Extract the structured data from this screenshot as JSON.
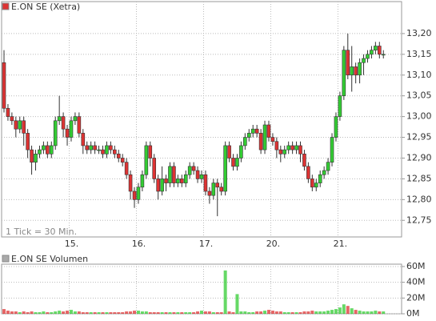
{
  "chart_data": [
    {
      "type": "candlestick",
      "title": "E.ON SE (Xetra)",
      "note": "1 Tick = 30 Min.",
      "grid": true,
      "up_color": "#33cc33",
      "down_color": "#dd3333",
      "open": [
        13.13,
        13.02,
        13.0,
        12.99,
        12.97,
        12.99,
        12.96,
        12.92,
        12.89,
        12.91,
        12.92,
        12.93,
        12.91,
        12.93,
        12.99,
        13.0,
        12.97,
        12.95,
        12.99,
        13.0,
        12.96,
        12.93,
        12.92,
        12.93,
        12.92,
        12.92,
        12.91,
        12.93,
        12.92,
        12.91,
        12.9,
        12.89,
        12.86,
        12.82,
        12.8,
        12.83,
        12.86,
        12.93,
        12.9,
        12.85,
        12.82,
        12.85,
        12.84,
        12.88,
        12.84,
        12.85,
        12.84,
        12.86,
        12.88,
        12.87,
        12.85,
        12.86,
        12.82,
        12.81,
        12.84,
        12.83,
        12.82,
        12.93,
        12.9,
        12.88,
        12.9,
        12.93,
        12.95,
        12.96,
        12.97,
        12.96,
        12.92,
        12.98,
        12.95,
        12.94,
        12.92,
        12.91,
        12.92,
        12.93,
        12.92,
        12.93,
        12.91,
        12.88,
        12.85,
        12.83,
        12.84,
        12.86,
        12.87,
        12.89,
        12.95,
        13.0,
        13.05,
        13.16,
        13.1,
        13.12,
        13.1,
        13.13,
        13.14,
        13.15,
        13.16,
        13.17,
        13.15
      ],
      "high": [
        13.16,
        13.03,
        13.01,
        13.0,
        13.0,
        13.0,
        12.97,
        12.93,
        12.92,
        12.93,
        12.94,
        12.94,
        12.94,
        13.0,
        13.05,
        13.01,
        12.98,
        13.0,
        13.01,
        13.01,
        12.97,
        12.94,
        12.94,
        12.94,
        12.93,
        12.93,
        12.94,
        12.94,
        12.93,
        12.92,
        12.91,
        12.9,
        12.87,
        12.83,
        12.84,
        12.87,
        12.94,
        12.94,
        12.91,
        12.86,
        12.88,
        12.86,
        12.89,
        12.89,
        12.86,
        12.86,
        12.87,
        12.89,
        12.89,
        12.88,
        12.87,
        12.87,
        12.83,
        12.85,
        12.85,
        12.84,
        12.94,
        12.94,
        12.91,
        12.91,
        12.94,
        12.96,
        12.97,
        12.98,
        12.98,
        12.97,
        12.99,
        12.99,
        12.96,
        12.95,
        12.93,
        12.93,
        12.94,
        12.94,
        12.94,
        12.94,
        12.92,
        12.89,
        12.86,
        12.85,
        12.87,
        12.88,
        12.9,
        12.96,
        13.01,
        13.06,
        13.17,
        13.2,
        13.17,
        13.13,
        13.14,
        13.15,
        13.16,
        13.17,
        13.18,
        13.18,
        13.16
      ],
      "low": [
        13.01,
        12.99,
        12.98,
        12.95,
        12.96,
        12.93,
        12.9,
        12.86,
        12.87,
        12.9,
        12.91,
        12.9,
        12.9,
        12.92,
        12.98,
        12.95,
        12.93,
        12.94,
        12.98,
        12.95,
        12.91,
        12.91,
        12.91,
        12.91,
        12.91,
        12.9,
        12.9,
        12.91,
        12.9,
        12.89,
        12.88,
        12.85,
        12.8,
        12.78,
        12.79,
        12.82,
        12.85,
        12.88,
        12.84,
        12.8,
        12.81,
        12.82,
        12.83,
        12.83,
        12.83,
        12.83,
        12.83,
        12.85,
        12.86,
        12.84,
        12.84,
        12.81,
        12.79,
        12.8,
        12.76,
        12.81,
        12.81,
        12.89,
        12.87,
        12.87,
        12.89,
        12.92,
        12.94,
        12.95,
        12.95,
        12.91,
        12.91,
        12.94,
        12.93,
        12.9,
        12.89,
        12.9,
        12.91,
        12.91,
        12.91,
        12.89,
        12.87,
        12.84,
        12.82,
        12.82,
        12.83,
        12.85,
        12.86,
        12.88,
        12.94,
        12.99,
        13.04,
        13.09,
        13.06,
        13.08,
        13.08,
        13.1,
        13.13,
        13.14,
        13.15,
        13.14,
        13.14
      ],
      "close": [
        13.02,
        13.0,
        12.99,
        12.97,
        12.99,
        12.96,
        12.92,
        12.89,
        12.91,
        12.92,
        12.93,
        12.91,
        12.93,
        12.99,
        13.0,
        12.97,
        12.95,
        12.99,
        13.0,
        12.96,
        12.93,
        12.92,
        12.93,
        12.92,
        12.92,
        12.91,
        12.93,
        12.92,
        12.91,
        12.9,
        12.89,
        12.86,
        12.82,
        12.8,
        12.83,
        12.86,
        12.93,
        12.9,
        12.85,
        12.82,
        12.85,
        12.84,
        12.88,
        12.84,
        12.85,
        12.84,
        12.86,
        12.88,
        12.87,
        12.85,
        12.86,
        12.82,
        12.81,
        12.84,
        12.83,
        12.82,
        12.93,
        12.9,
        12.88,
        12.9,
        12.93,
        12.95,
        12.96,
        12.97,
        12.96,
        12.92,
        12.98,
        12.95,
        12.94,
        12.92,
        12.91,
        12.92,
        12.93,
        12.92,
        12.93,
        12.91,
        12.88,
        12.85,
        12.83,
        12.84,
        12.86,
        12.87,
        12.89,
        12.95,
        13.0,
        13.05,
        13.16,
        13.1,
        13.12,
        13.1,
        13.13,
        13.14,
        13.15,
        13.16,
        13.17,
        13.15,
        13.15
      ],
      "xticks": [
        {
          "value": 17,
          "label": "15."
        },
        {
          "value": 34,
          "label": "16."
        },
        {
          "value": 51,
          "label": "17."
        },
        {
          "value": 68,
          "label": "20."
        },
        {
          "value": 85,
          "label": "21."
        }
      ],
      "ylim": [
        12.71,
        13.277
      ],
      "yticks": [
        {
          "value": 12.75,
          "label": "12,75"
        },
        {
          "value": 12.8,
          "label": "12,80"
        },
        {
          "value": 12.85,
          "label": "12,85"
        },
        {
          "value": 12.9,
          "label": "12,90"
        },
        {
          "value": 12.95,
          "label": "12,95"
        },
        {
          "value": 13.0,
          "label": "13,00"
        },
        {
          "value": 13.05,
          "label": "13,05"
        },
        {
          "value": 13.1,
          "label": "13,10"
        },
        {
          "value": 13.15,
          "label": "13,15"
        },
        {
          "value": 13.2,
          "label": "13,20"
        }
      ]
    },
    {
      "type": "bar",
      "title": "E.ON SE Volumen",
      "grid": true,
      "values": [
        6,
        4,
        3,
        3,
        2,
        3,
        2,
        3,
        2,
        2,
        3,
        2,
        2,
        3,
        4,
        3,
        4,
        5,
        3,
        3,
        2,
        2,
        2,
        2,
        2,
        2,
        2,
        2,
        2,
        2,
        2,
        3,
        3,
        4,
        4,
        3,
        3,
        2,
        2,
        2,
        2,
        2,
        2,
        2,
        2,
        2,
        2,
        2,
        2,
        3,
        4,
        3,
        3,
        2,
        2,
        2,
        55,
        3,
        2,
        25,
        3,
        3,
        2,
        2,
        3,
        3,
        4,
        5,
        4,
        3,
        3,
        2,
        2,
        2,
        2,
        2,
        3,
        3,
        4,
        3,
        3,
        3,
        4,
        5,
        6,
        8,
        12,
        10,
        7,
        5,
        4,
        3,
        3,
        3,
        4,
        3,
        3
      ],
      "ylim": [
        0,
        63
      ],
      "yticks": [
        {
          "value": 0,
          "label": "0M"
        },
        {
          "value": 20,
          "label": "20M"
        },
        {
          "value": 40,
          "label": "40M"
        },
        {
          "value": 60,
          "label": "60M"
        }
      ]
    }
  ]
}
